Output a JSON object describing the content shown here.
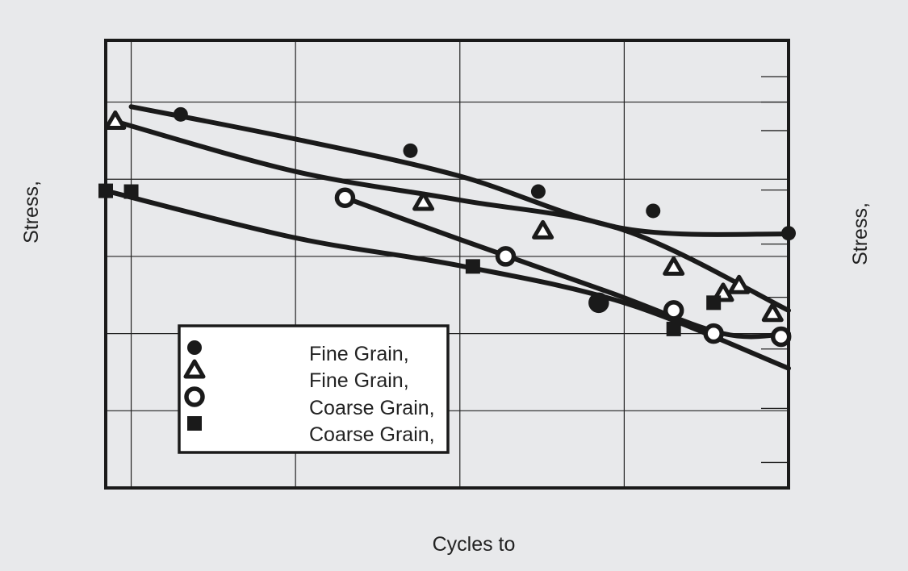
{
  "chart_data": {
    "type": "line",
    "xlabel": "Cycles to",
    "ylabel": "Stress,",
    "ylabel_right": "Stress,",
    "x_scale": "log",
    "xlim": [
      0.7,
      10000
    ],
    "ylim": [
      0,
      580
    ],
    "grid": true,
    "legend_position": "bottom-left",
    "series": [
      {
        "name": "Fine Grain,",
        "marker": "filled-circle",
        "points": [
          [
            2.0,
            484
          ],
          [
            50,
            437
          ],
          [
            300,
            384
          ],
          [
            1500,
            359
          ],
          [
            10000,
            330
          ]
        ],
        "curve": [
          [
            1.0,
            494
          ],
          [
            10,
            452
          ],
          [
            100,
            404
          ],
          [
            1000,
            336
          ],
          [
            10000,
            329
          ]
        ]
      },
      {
        "name": "Fine Grain,",
        "marker": "open-triangle",
        "points": [
          [
            0.8,
            475
          ],
          [
            60,
            370
          ],
          [
            320,
            333
          ],
          [
            2000,
            286
          ],
          [
            5000,
            262
          ],
          [
            4000,
            252
          ],
          [
            8000,
            226
          ]
        ],
        "curve": [
          [
            0.8,
            475
          ],
          [
            10,
            410
          ],
          [
            100,
            373
          ],
          [
            1000,
            334
          ],
          [
            10000,
            230
          ]
        ]
      },
      {
        "name": "Coarse Grain,",
        "marker": "open-circle",
        "points": [
          [
            20,
            376
          ],
          [
            190,
            300
          ],
          [
            700,
            240
          ],
          [
            2000,
            230
          ],
          [
            3500,
            200
          ],
          [
            9000,
            196
          ]
        ],
        "curve": [
          [
            20,
            376
          ],
          [
            100,
            322
          ],
          [
            800,
            254
          ],
          [
            4000,
            200
          ],
          [
            10000,
            200
          ]
        ]
      },
      {
        "name": "Coarse Grain,",
        "marker": "filled-square",
        "points": [
          [
            0.7,
            385
          ],
          [
            1.0,
            384
          ],
          [
            120,
            287
          ],
          [
            700,
            240
          ],
          [
            2000,
            206
          ],
          [
            3500,
            240
          ]
        ],
        "curve": [
          [
            0.7,
            385
          ],
          [
            10,
            324
          ],
          [
            100,
            288
          ],
          [
            1000,
            240
          ],
          [
            10000,
            155
          ]
        ]
      }
    ]
  }
}
